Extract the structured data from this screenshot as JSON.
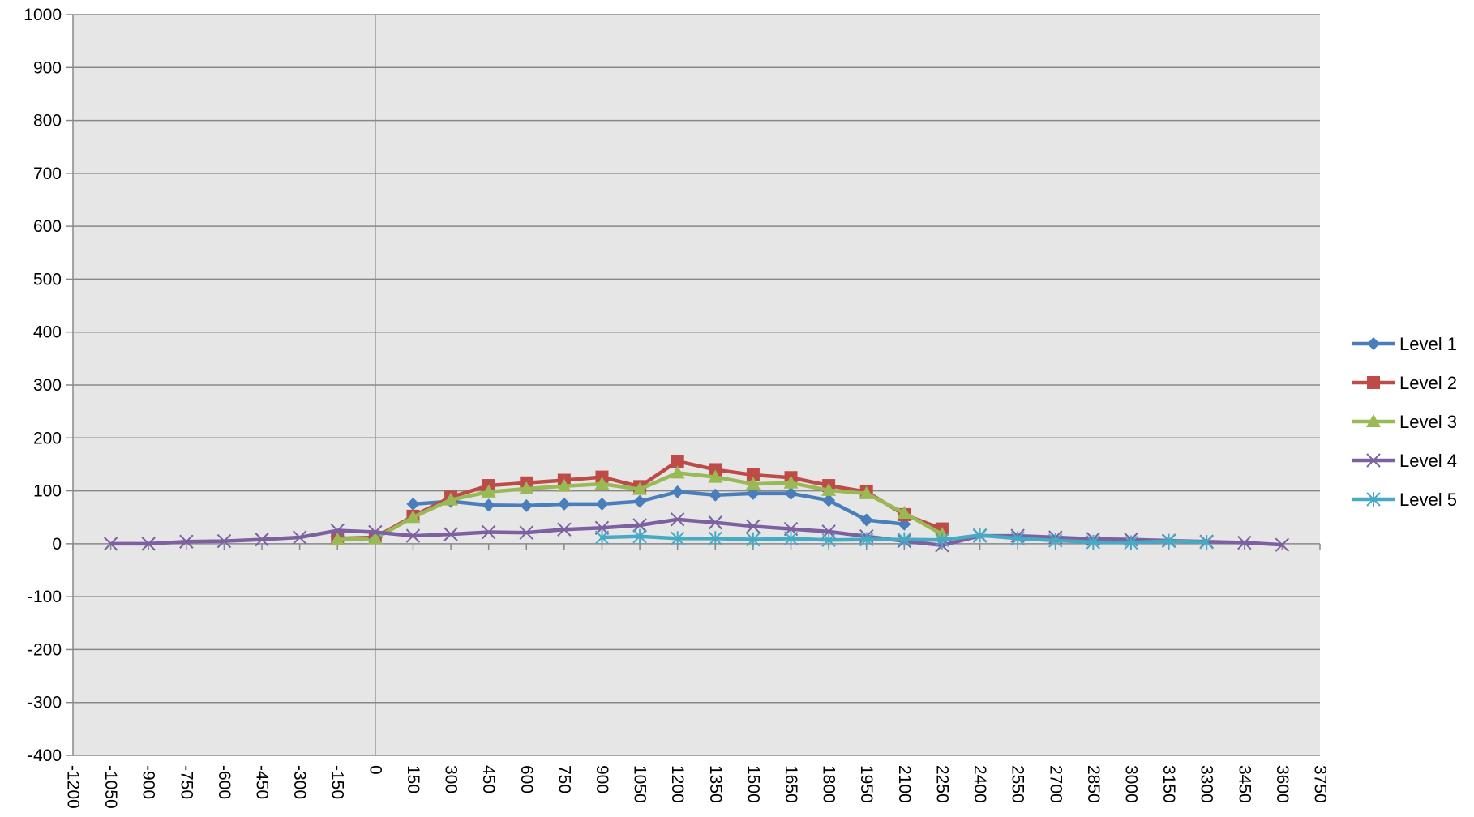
{
  "chart_data": {
    "type": "line",
    "title": "",
    "xlabel": "",
    "ylabel": "",
    "xlim": [
      -1200,
      3750
    ],
    "ylim": [
      -400,
      1000
    ],
    "x_ticks": [
      -1200,
      -1050,
      -900,
      -750,
      -600,
      -450,
      -300,
      -150,
      0,
      150,
      300,
      450,
      600,
      750,
      900,
      1050,
      1200,
      1350,
      1500,
      1650,
      1800,
      1950,
      2100,
      2250,
      2400,
      2550,
      2700,
      2850,
      3000,
      3150,
      3300,
      3450,
      3600,
      3750
    ],
    "y_ticks": [
      -400,
      -300,
      -200,
      -100,
      0,
      100,
      200,
      300,
      400,
      500,
      600,
      700,
      800,
      900,
      1000
    ],
    "grid": {
      "horizontal": true,
      "vertical": false
    },
    "plot_background": "#e6e6e6",
    "legend_position": "right",
    "series": [
      {
        "name": "Level 1",
        "color": "#4a7ebb",
        "marker": "diamond",
        "points": [
          [
            150,
            75
          ],
          [
            300,
            80
          ],
          [
            450,
            73
          ],
          [
            600,
            72
          ],
          [
            750,
            75
          ],
          [
            900,
            75
          ],
          [
            1050,
            80
          ],
          [
            1200,
            98
          ],
          [
            1350,
            92
          ],
          [
            1500,
            95
          ],
          [
            1650,
            95
          ],
          [
            1800,
            82
          ],
          [
            1950,
            45
          ],
          [
            2100,
            37
          ]
        ]
      },
      {
        "name": "Level 2",
        "color": "#be4b48",
        "marker": "square",
        "points": [
          [
            -150,
            10
          ],
          [
            0,
            12
          ],
          [
            150,
            52
          ],
          [
            300,
            88
          ],
          [
            450,
            110
          ],
          [
            600,
            115
          ],
          [
            750,
            120
          ],
          [
            900,
            126
          ],
          [
            1050,
            108
          ],
          [
            1200,
            156
          ],
          [
            1350,
            140
          ],
          [
            1500,
            130
          ],
          [
            1650,
            125
          ],
          [
            1800,
            110
          ],
          [
            1950,
            98
          ],
          [
            2100,
            55
          ],
          [
            2250,
            28
          ]
        ]
      },
      {
        "name": "Level 3",
        "color": "#98b954",
        "marker": "triangle",
        "points": [
          [
            -150,
            8
          ],
          [
            0,
            10
          ],
          [
            150,
            50
          ],
          [
            300,
            83
          ],
          [
            450,
            98
          ],
          [
            600,
            104
          ],
          [
            750,
            109
          ],
          [
            900,
            113
          ],
          [
            1050,
            103
          ],
          [
            1200,
            134
          ],
          [
            1350,
            126
          ],
          [
            1500,
            113
          ],
          [
            1650,
            115
          ],
          [
            1800,
            101
          ],
          [
            1950,
            95
          ],
          [
            2100,
            58
          ],
          [
            2250,
            18
          ]
        ]
      },
      {
        "name": "Level 4",
        "color": "#7d60a0",
        "marker": "x",
        "points": [
          [
            -1050,
            0
          ],
          [
            -900,
            0
          ],
          [
            -750,
            4
          ],
          [
            -600,
            5
          ],
          [
            -450,
            8
          ],
          [
            -300,
            12
          ],
          [
            -150,
            25
          ],
          [
            0,
            22
          ],
          [
            150,
            15
          ],
          [
            300,
            18
          ],
          [
            450,
            22
          ],
          [
            600,
            21
          ],
          [
            750,
            27
          ],
          [
            900,
            30
          ],
          [
            1050,
            35
          ],
          [
            1200,
            46
          ],
          [
            1350,
            40
          ],
          [
            1500,
            33
          ],
          [
            1650,
            28
          ],
          [
            1800,
            23
          ],
          [
            1950,
            14
          ],
          [
            2100,
            5
          ],
          [
            2250,
            -3
          ],
          [
            2400,
            15
          ],
          [
            2550,
            15
          ],
          [
            2700,
            12
          ],
          [
            2850,
            9
          ],
          [
            3000,
            8
          ],
          [
            3150,
            6
          ],
          [
            3300,
            4
          ],
          [
            3450,
            2
          ],
          [
            3600,
            -2
          ]
        ]
      },
      {
        "name": "Level 5",
        "color": "#46aac5",
        "marker": "star",
        "points": [
          [
            900,
            12
          ],
          [
            1050,
            14
          ],
          [
            1200,
            10
          ],
          [
            1350,
            10
          ],
          [
            1500,
            8
          ],
          [
            1650,
            10
          ],
          [
            1800,
            7
          ],
          [
            1950,
            8
          ],
          [
            2100,
            8
          ],
          [
            2250,
            7
          ],
          [
            2400,
            16
          ],
          [
            2550,
            10
          ],
          [
            2700,
            6
          ],
          [
            2850,
            3
          ],
          [
            3000,
            2
          ],
          [
            3150,
            5
          ],
          [
            3300,
            3
          ]
        ]
      }
    ]
  }
}
